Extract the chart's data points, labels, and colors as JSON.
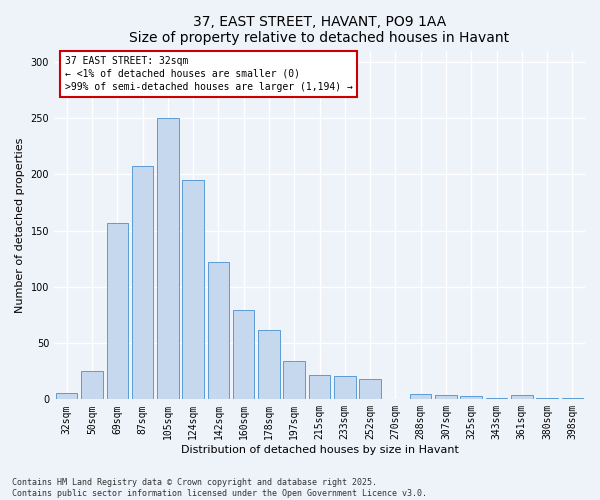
{
  "title_line1": "37, EAST STREET, HAVANT, PO9 1AA",
  "title_line2": "Size of property relative to detached houses in Havant",
  "xlabel": "Distribution of detached houses by size in Havant",
  "ylabel": "Number of detached properties",
  "categories": [
    "32sqm",
    "50sqm",
    "69sqm",
    "87sqm",
    "105sqm",
    "124sqm",
    "142sqm",
    "160sqm",
    "178sqm",
    "197sqm",
    "215sqm",
    "233sqm",
    "252sqm",
    "270sqm",
    "288sqm",
    "307sqm",
    "325sqm",
    "343sqm",
    "361sqm",
    "380sqm",
    "398sqm"
  ],
  "values": [
    6,
    25,
    157,
    207,
    250,
    195,
    122,
    79,
    62,
    34,
    22,
    21,
    18,
    0,
    5,
    4,
    3,
    1,
    4,
    1,
    1
  ],
  "bar_color": "#c5d8ed",
  "bar_edge_color": "#5b9bd5",
  "background_color": "#eef2f9",
  "grid_color": "#ffffff",
  "annotation_text": "37 EAST STREET: 32sqm\n← <1% of detached houses are smaller (0)\n>99% of semi-detached houses are larger (1,194) →",
  "annotation_box_color": "#ffffff",
  "annotation_box_edge": "#cc0000",
  "ylim": [
    0,
    310
  ],
  "yticks": [
    0,
    50,
    100,
    150,
    200,
    250,
    300
  ],
  "footer_text": "Contains HM Land Registry data © Crown copyright and database right 2025.\nContains public sector information licensed under the Open Government Licence v3.0.",
  "title_fontsize": 10,
  "axis_label_fontsize": 8,
  "tick_fontsize": 7,
  "annotation_fontsize": 7,
  "footer_fontsize": 6
}
